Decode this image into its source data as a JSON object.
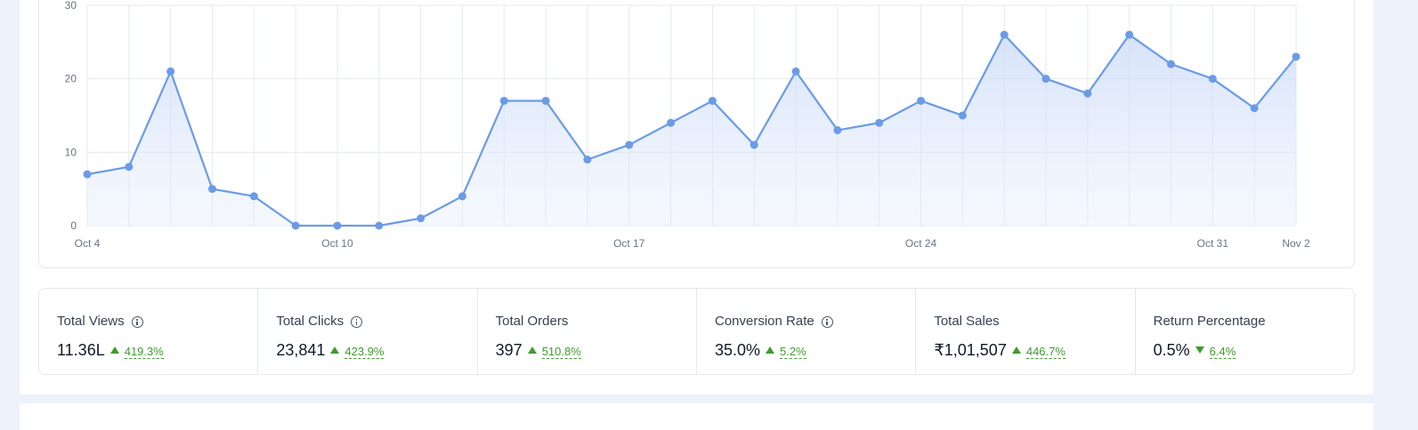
{
  "chart_data": {
    "type": "area",
    "x": [
      "Oct 4",
      "Oct 5",
      "Oct 6",
      "Oct 7",
      "Oct 8",
      "Oct 9",
      "Oct 10",
      "Oct 11",
      "Oct 12",
      "Oct 13",
      "Oct 14",
      "Oct 15",
      "Oct 16",
      "Oct 17",
      "Oct 18",
      "Oct 19",
      "Oct 20",
      "Oct 21",
      "Oct 22",
      "Oct 23",
      "Oct 24",
      "Oct 25",
      "Oct 26",
      "Oct 27",
      "Oct 28",
      "Oct 29",
      "Oct 30",
      "Oct 31",
      "Nov 1",
      "Nov 2"
    ],
    "values": [
      7,
      8,
      21,
      5,
      4,
      0,
      0,
      0,
      1,
      4,
      17,
      17,
      9,
      11,
      14,
      17,
      11,
      21,
      13,
      14,
      17,
      15,
      26,
      20,
      18,
      26,
      22,
      20,
      16,
      23
    ],
    "xtick_labels": [
      "Oct 4",
      "Oct 10",
      "Oct 17",
      "Oct 24",
      "Oct 31",
      "Nov 2"
    ],
    "ytick_labels": [
      "0",
      "10",
      "20",
      "30"
    ],
    "ylim": [
      0,
      30
    ],
    "grid": true,
    "color": "#6b9be6"
  },
  "stats": [
    {
      "label": "Total Views",
      "value": "11.36L",
      "change": "419.3%",
      "direction": "up",
      "info": true
    },
    {
      "label": "Total Clicks",
      "value": "23,841",
      "change": "423.9%",
      "direction": "up",
      "info": true
    },
    {
      "label": "Total Orders",
      "value": "397",
      "change": "510.8%",
      "direction": "up",
      "info": false
    },
    {
      "label": "Conversion Rate",
      "value": "35.0%",
      "change": "5.2%",
      "direction": "up",
      "info": true
    },
    {
      "label": "Total Sales",
      "value": "₹1,01,507",
      "change": "446.7%",
      "direction": "up",
      "info": false
    },
    {
      "label": "Return Percentage",
      "value": "0.5%",
      "change": "6.4%",
      "direction": "down",
      "info": false
    }
  ]
}
